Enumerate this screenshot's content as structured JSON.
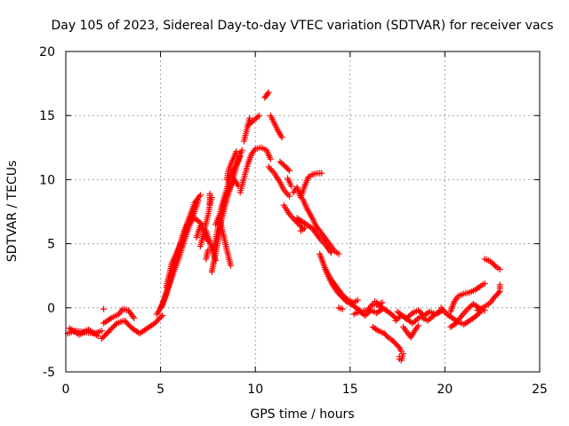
{
  "chart_data": {
    "type": "scatter",
    "title": "Day 105 of 2023, Sidereal Day-to-day VTEC variation (SDTVAR) for receiver vacs",
    "xlabel": "GPS time / hours",
    "ylabel": "SDTVAR / TECUs",
    "xlim": [
      0,
      25
    ],
    "ylim": [
      -5,
      20
    ],
    "xticks": [
      0,
      5,
      10,
      15,
      20,
      25
    ],
    "yticks": [
      -5,
      0,
      5,
      10,
      15,
      20
    ],
    "grid": true,
    "marker": "+",
    "color": "#ff0000",
    "series": [
      {
        "name": "SDTVAR",
        "segments": [
          {
            "x": [
              0.1,
              0.5,
              1.0,
              1.5,
              1.9
            ],
            "y": [
              -2.0,
              -1.8,
              -1.9,
              -2.0,
              -1.8
            ]
          },
          {
            "x": [
              0.2,
              0.7,
              1.2,
              1.7
            ],
            "y": [
              -1.6,
              -2.1,
              -1.7,
              -2.2
            ]
          },
          {
            "x": [
              1.9,
              2.3,
              2.7,
              3.1,
              3.5,
              3.9,
              4.3,
              4.7,
              5.1
            ],
            "y": [
              -2.4,
              -1.8,
              -1.2,
              -1.0,
              -1.6,
              -2.0,
              -1.6,
              -1.2,
              -0.6
            ]
          },
          {
            "x": [
              2.0,
              2.4,
              2.8,
              3.0,
              3.3,
              3.6
            ],
            "y": [
              -1.2,
              -0.8,
              -0.5,
              -0.1,
              -0.2,
              -0.8
            ]
          },
          {
            "x": [
              2.0
            ],
            "y": [
              -0.1
            ]
          },
          {
            "x": [
              4.8,
              5.1,
              5.3,
              5.6,
              5.9,
              6.2,
              6.5,
              6.8,
              7.0
            ],
            "y": [
              -0.5,
              0.2,
              1.2,
              2.4,
              3.6,
              5.0,
              6.3,
              7.5,
              8.4
            ]
          },
          {
            "x": [
              5.0,
              5.3,
              5.6,
              5.9,
              6.2,
              6.5,
              6.8,
              7.1
            ],
            "y": [
              0.0,
              1.0,
              2.6,
              4.3,
              5.8,
              7.0,
              8.2,
              8.8
            ]
          },
          {
            "x": [
              5.3,
              5.6,
              6.0,
              6.4,
              6.8,
              7.2
            ],
            "y": [
              1.6,
              3.5,
              4.8,
              6.5,
              7.0,
              6.5
            ]
          },
          {
            "x": [
              6.9,
              7.1,
              7.3,
              7.5
            ],
            "y": [
              5.5,
              6.4,
              6.0,
              5.2
            ]
          },
          {
            "x": [
              7.1,
              7.3,
              7.5,
              7.6,
              7.6
            ],
            "y": [
              4.8,
              6.0,
              7.2,
              8.0,
              8.9
            ]
          },
          {
            "x": [
              7.3,
              7.4,
              7.7,
              7.9
            ],
            "y": [
              5.5,
              6.0,
              4.6,
              3.7
            ]
          },
          {
            "x": [
              7.7,
              7.8,
              8.0,
              8.2,
              8.5,
              8.8,
              9.0,
              9.2,
              9.3
            ],
            "y": [
              2.8,
              3.5,
              5.0,
              6.8,
              8.5,
              10.0,
              11.0,
              12.0,
              12.3
            ]
          },
          {
            "x": [
              7.8,
              8.0,
              8.2,
              8.5,
              8.7,
              9.0,
              9.2
            ],
            "y": [
              4.5,
              6.0,
              7.8,
              9.3,
              10.5,
              11.2,
              11.8
            ]
          },
          {
            "x": [
              7.9,
              8.2,
              8.4,
              8.7,
              8.9,
              9.1
            ],
            "y": [
              6.5,
              7.5,
              8.5,
              9.5,
              10.0,
              9.5
            ]
          },
          {
            "x": [
              8.1,
              8.3,
              8.5,
              8.7
            ],
            "y": [
              7.0,
              5.8,
              4.5,
              3.3
            ]
          },
          {
            "x": [
              8.5,
              8.6,
              8.8,
              9.0
            ],
            "y": [
              10.0,
              10.8,
              11.5,
              12.2
            ]
          },
          {
            "x": [
              7.7,
              7.6
            ],
            "y": [
              8.6,
              8.1
            ]
          },
          {
            "x": [
              7.5,
              7.4
            ],
            "y": [
              4.5,
              3.8
            ]
          },
          {
            "x": [
              9.2,
              9.4,
              9.6,
              9.8,
              10.0,
              10.3,
              10.6,
              10.8
            ],
            "y": [
              9.0,
              10.1,
              11.2,
              12.0,
              12.4,
              12.5,
              12.3,
              11.6
            ]
          },
          {
            "x": [
              9.6,
              9.9,
              10.2
            ],
            "y": [
              14.2,
              14.6,
              15.0
            ]
          },
          {
            "x": [
              9.4,
              9.7
            ],
            "y": [
              13.0,
              14.8
            ]
          },
          {
            "x": [
              10.5,
              10.6,
              10.7
            ],
            "y": [
              16.4,
              16.6,
              16.8
            ]
          },
          {
            "x": [
              10.8,
              11.0,
              11.2,
              11.4
            ],
            "y": [
              15.0,
              14.4,
              13.8,
              13.3
            ]
          },
          {
            "x": [
              10.7,
              11.0,
              11.3,
              11.5,
              11.8
            ],
            "y": [
              11.0,
              10.5,
              9.8,
              9.2,
              8.7
            ]
          },
          {
            "x": [
              11.3,
              11.6,
              11.8
            ],
            "y": [
              11.4,
              11.0,
              10.7
            ]
          },
          {
            "x": [
              11.5,
              11.8,
              12.1,
              12.3,
              12.5
            ],
            "y": [
              8.0,
              7.3,
              6.8,
              6.5,
              6.2
            ]
          },
          {
            "x": [
              11.7,
              11.9
            ],
            "y": [
              10.1,
              9.5
            ]
          },
          {
            "x": [
              12.0,
              12.2,
              12.4,
              12.6,
              12.8,
              13.0,
              13.3,
              13.5
            ],
            "y": [
              9.0,
              9.4,
              8.6,
              9.5,
              10.2,
              10.4,
              10.5,
              10.5
            ]
          },
          {
            "x": [
              12.5,
              12.7,
              13.0,
              13.2,
              13.5,
              13.8,
              14.0,
              14.2,
              14.4
            ],
            "y": [
              8.5,
              7.8,
              7.0,
              6.4,
              5.8,
              5.2,
              4.8,
              4.4,
              4.2
            ]
          },
          {
            "x": [
              12.2,
              12.6,
              13.0,
              13.4,
              13.7,
              14.0
            ],
            "y": [
              7.0,
              6.6,
              6.2,
              5.4,
              4.9,
              4.3
            ]
          },
          {
            "x": [
              12.4,
              12.6
            ],
            "y": [
              6.0,
              6.2
            ]
          },
          {
            "x": [
              13.4,
              13.6,
              13.8,
              14.0,
              14.2,
              14.4,
              14.6,
              14.8,
              15.0
            ],
            "y": [
              4.2,
              3.4,
              2.6,
              2.0,
              1.5,
              1.1,
              0.8,
              0.5,
              0.3
            ]
          },
          {
            "x": [
              13.7,
              14.0,
              14.3,
              14.6,
              14.9,
              15.2,
              15.4
            ],
            "y": [
              3.0,
              2.2,
              1.6,
              1.0,
              0.6,
              0.4,
              0.6
            ]
          },
          {
            "x": [
              14.4,
              14.6
            ],
            "y": [
              0.0,
              -0.1
            ]
          },
          {
            "x": [
              15.0,
              15.3,
              15.6,
              15.9,
              16.2,
              16.5,
              16.8,
              17.1,
              17.4
            ],
            "y": [
              0.4,
              0.0,
              -0.3,
              -0.2,
              0.3,
              0.2,
              -0.1,
              -0.4,
              -0.8
            ]
          },
          {
            "x": [
              15.2,
              15.5,
              15.8,
              16.1,
              16.4,
              16.7
            ],
            "y": [
              -0.5,
              -0.3,
              -0.6,
              -0.2,
              -0.4,
              -0.1
            ]
          },
          {
            "x": [
              16.2,
              16.5,
              16.8,
              17.0,
              17.2,
              17.4,
              17.6,
              17.7
            ],
            "y": [
              -1.5,
              -1.8,
              -2.0,
              -2.3,
              -2.5,
              -2.8,
              -3.1,
              -3.4
            ]
          },
          {
            "x": [
              17.6,
              17.6,
              17.7,
              17.8
            ],
            "y": [
              -3.8,
              -4.0,
              -4.1,
              -3.6
            ]
          },
          {
            "x": [
              16.3,
              16.5,
              16.7
            ],
            "y": [
              0.5,
              0.3,
              0.4
            ]
          },
          {
            "x": [
              17.4,
              17.7,
              18.0,
              18.3,
              18.6,
              18.9,
              19.2,
              19.5,
              19.8
            ],
            "y": [
              -1.0,
              -0.6,
              -0.8,
              -0.4,
              -0.2,
              -0.6,
              -0.3,
              -0.5,
              -0.2
            ]
          },
          {
            "x": [
              17.8,
              18.0,
              18.2,
              18.4,
              18.6
            ],
            "y": [
              -1.5,
              -1.9,
              -2.3,
              -1.8,
              -1.4
            ]
          },
          {
            "x": [
              17.5,
              17.9,
              18.3,
              18.7,
              19.1,
              19.5,
              19.9
            ],
            "y": [
              -0.3,
              -0.8,
              -1.2,
              -0.7,
              -1.0,
              -0.5,
              -0.2
            ]
          },
          {
            "x": [
              19.8,
              20.1,
              20.4,
              20.7,
              21.0,
              21.3,
              21.6,
              21.9
            ],
            "y": [
              0.0,
              -0.5,
              -0.8,
              -1.1,
              -1.3,
              -1.0,
              -0.7,
              -0.3
            ]
          },
          {
            "x": [
              20.3,
              20.6,
              20.9,
              21.2,
              21.5,
              21.8,
              22.1
            ],
            "y": [
              -1.5,
              -1.2,
              -0.6,
              -0.1,
              0.3,
              0.0,
              -0.2
            ]
          },
          {
            "x": [
              20.3,
              20.5,
              20.7,
              21.0,
              21.3,
              21.6,
              21.9,
              22.1
            ],
            "y": [
              -0.3,
              0.5,
              0.9,
              1.1,
              1.2,
              1.4,
              1.7,
              1.9
            ]
          },
          {
            "x": [
              21.7,
              22.0,
              22.2,
              22.4,
              22.6,
              22.8,
              22.9
            ],
            "y": [
              -0.2,
              0.0,
              0.2,
              0.4,
              0.8,
              1.1,
              1.3
            ]
          },
          {
            "x": [
              22.9,
              22.9
            ],
            "y": [
              1.5,
              1.8
            ]
          },
          {
            "x": [
              22.1,
              22.3,
              22.5,
              22.7,
              22.9
            ],
            "y": [
              3.8,
              3.7,
              3.5,
              3.2,
              3.0
            ]
          }
        ]
      }
    ]
  }
}
